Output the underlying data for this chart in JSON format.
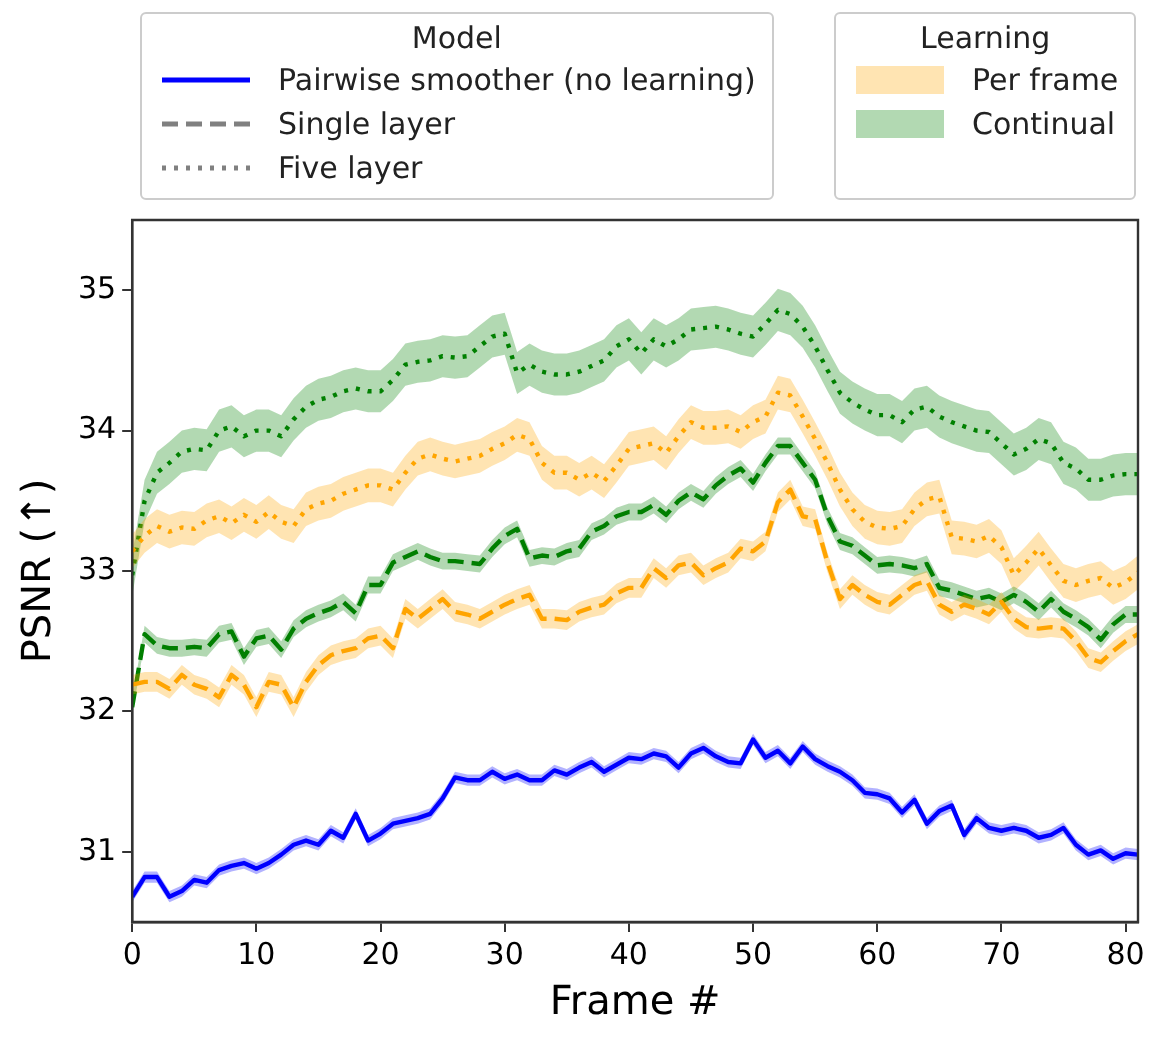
{
  "chart_data": {
    "type": "line",
    "xlabel": "Frame #",
    "ylabel": "PSNR (↑)",
    "legend_title": "Model",
    "legend": "top",
    "annotations": [
      "Single layer",
      "Five layer",
      "Learning",
      "Per frame",
      "Continual"
    ],
    "x": [
      0,
      1,
      2,
      3,
      4,
      5,
      6,
      7,
      8,
      9,
      10,
      11,
      12,
      13,
      14,
      15,
      16,
      17,
      18,
      19,
      20,
      21,
      22,
      23,
      24,
      25,
      26,
      27,
      28,
      29,
      30,
      31,
      32,
      33,
      34,
      35,
      36,
      37,
      38,
      39,
      40,
      41,
      42,
      43,
      44,
      45,
      46,
      47,
      48,
      49,
      50,
      51,
      52,
      53,
      54,
      55,
      56,
      57,
      58,
      59,
      60,
      61,
      62,
      63,
      64,
      65,
      66,
      67,
      68,
      69,
      70,
      71,
      72,
      73,
      74,
      75,
      76,
      77,
      78,
      79,
      80,
      81
    ],
    "xlim": [
      0,
      81
    ],
    "xticks": [
      0,
      10,
      20,
      30,
      40,
      50,
      60,
      70,
      80
    ],
    "ylim": [
      30.5,
      35.5
    ],
    "yticks": [
      31,
      32,
      33,
      34,
      35
    ],
    "grid": false,
    "marker": "none",
    "series": [
      {
        "name": "Pairwise smoother (no learning)",
        "color": "#0000ff",
        "line_style": "solid",
        "values": [
          30.68,
          30.82,
          30.82,
          30.68,
          30.72,
          30.8,
          30.78,
          30.87,
          30.9,
          30.92,
          30.88,
          30.92,
          30.98,
          31.05,
          31.08,
          31.05,
          31.15,
          31.1,
          31.27,
          31.08,
          31.13,
          31.2,
          31.22,
          31.24,
          31.27,
          31.38,
          31.53,
          31.51,
          31.51,
          31.57,
          31.52,
          31.55,
          31.51,
          31.51,
          31.58,
          31.55,
          31.6,
          31.64,
          31.57,
          31.62,
          31.67,
          31.66,
          31.7,
          31.68,
          31.6,
          31.7,
          31.74,
          31.68,
          31.64,
          31.63,
          31.8,
          31.67,
          31.72,
          31.63,
          31.75,
          31.66,
          31.61,
          31.57,
          31.51,
          31.42,
          31.41,
          31.38,
          31.28,
          31.37,
          31.2,
          31.29,
          31.33,
          31.12,
          31.24,
          31.17,
          31.15,
          31.17,
          31.15,
          31.1,
          31.12,
          31.17,
          31.05,
          30.98,
          31.01,
          30.95,
          30.99,
          30.98
        ],
        "lower": [
          30.64,
          30.78,
          30.78,
          30.64,
          30.68,
          30.76,
          30.74,
          30.83,
          30.86,
          30.88,
          30.84,
          30.88,
          30.94,
          31.01,
          31.04,
          31.01,
          31.11,
          31.06,
          31.23,
          31.04,
          31.09,
          31.16,
          31.18,
          31.2,
          31.23,
          31.34,
          31.49,
          31.47,
          31.47,
          31.53,
          31.48,
          31.51,
          31.47,
          31.47,
          31.54,
          31.51,
          31.56,
          31.6,
          31.53,
          31.58,
          31.63,
          31.62,
          31.66,
          31.64,
          31.56,
          31.66,
          31.7,
          31.64,
          31.6,
          31.59,
          31.76,
          31.63,
          31.68,
          31.59,
          31.71,
          31.62,
          31.57,
          31.53,
          31.47,
          31.38,
          31.37,
          31.34,
          31.24,
          31.33,
          31.16,
          31.25,
          31.29,
          31.08,
          31.2,
          31.13,
          31.11,
          31.13,
          31.11,
          31.06,
          31.08,
          31.13,
          31.01,
          30.94,
          30.97,
          30.91,
          30.95,
          30.94
        ],
        "upper": [
          30.72,
          30.86,
          30.86,
          30.72,
          30.76,
          30.84,
          30.82,
          30.91,
          30.94,
          30.96,
          30.92,
          30.96,
          31.02,
          31.09,
          31.12,
          31.09,
          31.19,
          31.14,
          31.31,
          31.12,
          31.17,
          31.24,
          31.26,
          31.28,
          31.31,
          31.42,
          31.57,
          31.55,
          31.55,
          31.61,
          31.56,
          31.59,
          31.55,
          31.55,
          31.62,
          31.59,
          31.64,
          31.68,
          31.61,
          31.66,
          31.71,
          31.7,
          31.74,
          31.72,
          31.64,
          31.74,
          31.78,
          31.72,
          31.68,
          31.67,
          31.84,
          31.71,
          31.76,
          31.67,
          31.79,
          31.7,
          31.65,
          31.61,
          31.55,
          31.46,
          31.45,
          31.42,
          31.32,
          31.41,
          31.24,
          31.33,
          31.37,
          31.16,
          31.28,
          31.21,
          31.19,
          31.21,
          31.19,
          31.14,
          31.16,
          31.21,
          31.09,
          31.02,
          31.05,
          30.99,
          31.03,
          31.02
        ]
      },
      {
        "color": "#008000",
        "line_style": "dotted",
        "values": [
          32.97,
          33.5,
          33.7,
          33.77,
          33.85,
          33.87,
          33.86,
          34.0,
          34.03,
          33.96,
          34.0,
          34.0,
          33.96,
          34.08,
          34.17,
          34.22,
          34.24,
          34.28,
          34.3,
          34.28,
          34.28,
          34.36,
          34.47,
          34.49,
          34.5,
          34.53,
          34.52,
          34.53,
          34.6,
          34.67,
          34.69,
          34.41,
          34.47,
          34.42,
          34.4,
          34.4,
          34.42,
          34.46,
          34.5,
          34.6,
          34.65,
          34.55,
          34.65,
          34.6,
          34.65,
          34.72,
          34.73,
          34.74,
          34.72,
          34.69,
          34.67,
          34.76,
          34.86,
          34.83,
          34.74,
          34.6,
          34.43,
          34.27,
          34.2,
          34.15,
          34.11,
          34.11,
          34.06,
          34.15,
          34.17,
          34.1,
          34.06,
          34.03,
          34.0,
          33.99,
          33.91,
          33.83,
          33.87,
          33.94,
          33.91,
          33.77,
          33.73,
          33.65,
          33.65,
          33.68,
          33.69,
          33.69
        ],
        "lower": [
          32.82,
          33.35,
          33.55,
          33.62,
          33.7,
          33.72,
          33.71,
          33.85,
          33.88,
          33.81,
          33.85,
          33.85,
          33.81,
          33.93,
          34.02,
          34.07,
          34.09,
          34.13,
          34.15,
          34.13,
          34.13,
          34.21,
          34.32,
          34.34,
          34.35,
          34.38,
          34.37,
          34.38,
          34.45,
          34.52,
          34.54,
          34.26,
          34.32,
          34.27,
          34.25,
          34.25,
          34.27,
          34.31,
          34.35,
          34.45,
          34.5,
          34.4,
          34.5,
          34.45,
          34.5,
          34.57,
          34.58,
          34.59,
          34.57,
          34.54,
          34.52,
          34.61,
          34.71,
          34.68,
          34.59,
          34.45,
          34.28,
          34.12,
          34.05,
          34.0,
          33.96,
          33.96,
          33.91,
          34.0,
          34.02,
          33.95,
          33.91,
          33.88,
          33.85,
          33.84,
          33.76,
          33.68,
          33.72,
          33.79,
          33.76,
          33.62,
          33.58,
          33.5,
          33.5,
          33.53,
          33.54,
          33.54
        ],
        "upper": [
          33.12,
          33.65,
          33.85,
          33.92,
          34.0,
          34.02,
          34.01,
          34.15,
          34.18,
          34.11,
          34.15,
          34.15,
          34.11,
          34.23,
          34.32,
          34.37,
          34.39,
          34.43,
          34.45,
          34.43,
          34.43,
          34.51,
          34.62,
          34.64,
          34.65,
          34.68,
          34.67,
          34.68,
          34.75,
          34.82,
          34.84,
          34.56,
          34.62,
          34.57,
          34.55,
          34.55,
          34.57,
          34.61,
          34.65,
          34.75,
          34.8,
          34.7,
          34.8,
          34.75,
          34.8,
          34.87,
          34.88,
          34.89,
          34.87,
          34.84,
          34.82,
          34.91,
          35.01,
          34.98,
          34.89,
          34.75,
          34.58,
          34.42,
          34.35,
          34.3,
          34.26,
          34.26,
          34.21,
          34.3,
          34.32,
          34.25,
          34.21,
          34.18,
          34.15,
          34.14,
          34.06,
          33.98,
          34.02,
          34.09,
          34.06,
          33.92,
          33.88,
          33.8,
          33.8,
          33.83,
          33.84,
          33.84
        ]
      },
      {
        "color": "#ffa500",
        "line_style": "dotted",
        "values": [
          33.14,
          33.25,
          33.32,
          33.28,
          33.31,
          33.3,
          33.36,
          33.39,
          33.34,
          33.4,
          33.35,
          33.42,
          33.35,
          33.32,
          33.44,
          33.48,
          33.5,
          33.55,
          33.58,
          33.61,
          33.61,
          33.58,
          33.7,
          33.8,
          33.83,
          33.8,
          33.78,
          33.8,
          33.82,
          33.87,
          33.91,
          33.97,
          33.94,
          33.77,
          33.7,
          33.7,
          33.65,
          33.7,
          33.64,
          33.75,
          33.87,
          33.89,
          33.91,
          33.84,
          33.96,
          34.06,
          34.02,
          34.02,
          34.03,
          33.99,
          34.06,
          34.1,
          34.27,
          34.25,
          34.1,
          33.94,
          33.77,
          33.58,
          33.44,
          33.35,
          33.31,
          33.3,
          33.32,
          33.44,
          33.51,
          33.53,
          33.24,
          33.23,
          33.21,
          33.25,
          33.17,
          32.97,
          33.06,
          33.16,
          33.04,
          32.93,
          32.9,
          32.93,
          32.95,
          32.88,
          32.92,
          32.99
        ],
        "lower": [
          33.02,
          33.13,
          33.2,
          33.16,
          33.19,
          33.18,
          33.24,
          33.27,
          33.22,
          33.28,
          33.23,
          33.3,
          33.23,
          33.2,
          33.32,
          33.36,
          33.38,
          33.43,
          33.46,
          33.49,
          33.49,
          33.46,
          33.58,
          33.68,
          33.71,
          33.68,
          33.66,
          33.68,
          33.7,
          33.75,
          33.79,
          33.85,
          33.82,
          33.65,
          33.58,
          33.58,
          33.53,
          33.58,
          33.52,
          33.63,
          33.75,
          33.77,
          33.79,
          33.72,
          33.84,
          33.94,
          33.9,
          33.9,
          33.91,
          33.87,
          33.94,
          33.98,
          34.15,
          34.13,
          33.98,
          33.82,
          33.65,
          33.46,
          33.32,
          33.23,
          33.19,
          33.18,
          33.2,
          33.32,
          33.39,
          33.41,
          33.12,
          33.11,
          33.09,
          33.13,
          33.05,
          32.85,
          32.94,
          33.04,
          32.92,
          32.81,
          32.78,
          32.81,
          32.83,
          32.76,
          32.8,
          32.87
        ],
        "upper": [
          33.26,
          33.37,
          33.44,
          33.4,
          33.43,
          33.42,
          33.48,
          33.51,
          33.46,
          33.52,
          33.47,
          33.54,
          33.47,
          33.44,
          33.56,
          33.6,
          33.62,
          33.67,
          33.7,
          33.73,
          33.73,
          33.7,
          33.82,
          33.92,
          33.95,
          33.92,
          33.9,
          33.92,
          33.94,
          33.99,
          34.03,
          34.09,
          34.06,
          33.89,
          33.82,
          33.82,
          33.77,
          33.82,
          33.76,
          33.87,
          33.99,
          34.01,
          34.03,
          33.96,
          34.08,
          34.18,
          34.14,
          34.14,
          34.15,
          34.11,
          34.18,
          34.22,
          34.39,
          34.37,
          34.22,
          34.06,
          33.89,
          33.7,
          33.56,
          33.47,
          33.43,
          33.42,
          33.44,
          33.56,
          33.63,
          33.65,
          33.36,
          33.35,
          33.33,
          33.37,
          33.29,
          33.09,
          33.18,
          33.28,
          33.16,
          33.05,
          33.02,
          33.05,
          33.07,
          33.0,
          33.04,
          33.11
        ]
      },
      {
        "color": "#007f00",
        "line_style": "dashed",
        "values": [
          32.03,
          32.55,
          32.47,
          32.45,
          32.45,
          32.46,
          32.45,
          32.55,
          32.57,
          32.39,
          32.52,
          32.54,
          32.44,
          32.59,
          32.66,
          32.7,
          32.73,
          32.78,
          32.7,
          32.9,
          32.9,
          33.06,
          33.1,
          33.14,
          33.1,
          33.07,
          33.07,
          33.06,
          33.05,
          33.16,
          33.25,
          33.3,
          33.09,
          33.11,
          33.1,
          33.14,
          33.16,
          33.28,
          33.32,
          33.39,
          33.42,
          33.42,
          33.47,
          33.4,
          33.5,
          33.56,
          33.51,
          33.61,
          33.68,
          33.73,
          33.63,
          33.77,
          33.89,
          33.89,
          33.77,
          33.65,
          33.39,
          33.21,
          33.18,
          33.11,
          33.04,
          33.05,
          33.04,
          33.02,
          33.05,
          32.88,
          32.86,
          32.83,
          32.8,
          32.82,
          32.78,
          32.83,
          32.78,
          32.71,
          32.8,
          32.71,
          32.66,
          32.6,
          32.51,
          32.62,
          32.69,
          32.69
        ],
        "lower": [
          31.97,
          32.49,
          32.41,
          32.39,
          32.39,
          32.4,
          32.39,
          32.49,
          32.51,
          32.33,
          32.46,
          32.48,
          32.38,
          32.53,
          32.6,
          32.64,
          32.67,
          32.72,
          32.64,
          32.84,
          32.84,
          33.0,
          33.04,
          33.08,
          33.04,
          33.01,
          33.01,
          33.0,
          32.99,
          33.1,
          33.19,
          33.24,
          33.03,
          33.05,
          33.04,
          33.08,
          33.1,
          33.22,
          33.26,
          33.33,
          33.36,
          33.36,
          33.41,
          33.34,
          33.44,
          33.5,
          33.45,
          33.55,
          33.62,
          33.67,
          33.57,
          33.71,
          33.83,
          33.83,
          33.71,
          33.59,
          33.33,
          33.15,
          33.12,
          33.05,
          32.98,
          32.99,
          32.98,
          32.96,
          32.99,
          32.82,
          32.8,
          32.77,
          32.74,
          32.76,
          32.72,
          32.77,
          32.72,
          32.65,
          32.74,
          32.65,
          32.6,
          32.54,
          32.45,
          32.56,
          32.63,
          32.63
        ],
        "upper": [
          32.09,
          32.61,
          32.53,
          32.51,
          32.51,
          32.52,
          32.51,
          32.61,
          32.63,
          32.45,
          32.58,
          32.6,
          32.5,
          32.65,
          32.72,
          32.76,
          32.79,
          32.84,
          32.76,
          32.96,
          32.96,
          33.12,
          33.16,
          33.2,
          33.16,
          33.13,
          33.13,
          33.12,
          33.11,
          33.22,
          33.31,
          33.36,
          33.15,
          33.17,
          33.16,
          33.2,
          33.22,
          33.34,
          33.38,
          33.45,
          33.48,
          33.48,
          33.53,
          33.46,
          33.56,
          33.62,
          33.57,
          33.67,
          33.74,
          33.79,
          33.69,
          33.83,
          33.95,
          33.95,
          33.83,
          33.71,
          33.45,
          33.27,
          33.24,
          33.17,
          33.1,
          33.11,
          33.1,
          33.08,
          33.11,
          32.94,
          32.92,
          32.89,
          32.86,
          32.88,
          32.84,
          32.89,
          32.84,
          32.77,
          32.86,
          32.77,
          32.72,
          32.66,
          32.57,
          32.68,
          32.75,
          32.75
        ]
      },
      {
        "color": "#ffa400",
        "line_style": "dashed",
        "values": [
          32.19,
          32.21,
          32.21,
          32.16,
          32.26,
          32.19,
          32.16,
          32.1,
          32.26,
          32.19,
          32.03,
          32.21,
          32.19,
          32.03,
          32.21,
          32.33,
          32.4,
          32.43,
          32.45,
          32.52,
          32.54,
          32.45,
          32.73,
          32.66,
          32.73,
          32.8,
          32.71,
          32.69,
          32.66,
          32.71,
          32.76,
          32.8,
          32.83,
          32.66,
          32.66,
          32.65,
          32.71,
          32.74,
          32.76,
          32.84,
          32.88,
          32.88,
          33.02,
          32.95,
          33.04,
          33.06,
          32.97,
          33.02,
          33.06,
          33.16,
          33.14,
          33.21,
          33.49,
          33.58,
          33.39,
          33.37,
          33.06,
          32.8,
          32.9,
          32.83,
          32.78,
          32.76,
          32.83,
          32.9,
          32.93,
          32.76,
          32.71,
          32.76,
          32.73,
          32.69,
          32.78,
          32.66,
          32.6,
          32.59,
          32.6,
          32.59,
          32.5,
          32.38,
          32.35,
          32.43,
          32.5,
          32.55
        ],
        "lower": [
          32.12,
          32.14,
          32.14,
          32.09,
          32.19,
          32.12,
          32.09,
          32.03,
          32.19,
          32.12,
          31.96,
          32.14,
          32.12,
          31.96,
          32.14,
          32.26,
          32.33,
          32.36,
          32.38,
          32.45,
          32.47,
          32.38,
          32.66,
          32.59,
          32.66,
          32.73,
          32.64,
          32.62,
          32.59,
          32.64,
          32.69,
          32.73,
          32.76,
          32.59,
          32.59,
          32.58,
          32.64,
          32.67,
          32.69,
          32.77,
          32.81,
          32.81,
          32.95,
          32.88,
          32.97,
          32.99,
          32.9,
          32.95,
          32.99,
          33.09,
          33.07,
          33.14,
          33.42,
          33.51,
          33.32,
          33.3,
          32.99,
          32.73,
          32.83,
          32.76,
          32.71,
          32.69,
          32.76,
          32.83,
          32.86,
          32.69,
          32.64,
          32.69,
          32.66,
          32.62,
          32.71,
          32.59,
          32.53,
          32.52,
          32.53,
          32.52,
          32.43,
          32.31,
          32.28,
          32.36,
          32.43,
          32.48
        ],
        "upper": [
          32.26,
          32.28,
          32.28,
          32.23,
          32.33,
          32.26,
          32.23,
          32.17,
          32.33,
          32.26,
          32.1,
          32.28,
          32.26,
          32.1,
          32.28,
          32.4,
          32.47,
          32.5,
          32.52,
          32.59,
          32.61,
          32.52,
          32.8,
          32.73,
          32.8,
          32.87,
          32.78,
          32.76,
          32.73,
          32.78,
          32.83,
          32.87,
          32.9,
          32.73,
          32.73,
          32.72,
          32.78,
          32.81,
          32.83,
          32.91,
          32.95,
          32.95,
          33.09,
          33.02,
          33.11,
          33.13,
          33.04,
          33.09,
          33.13,
          33.23,
          33.21,
          33.28,
          33.56,
          33.65,
          33.46,
          33.44,
          33.13,
          32.87,
          32.97,
          32.9,
          32.85,
          32.83,
          32.9,
          32.97,
          33.0,
          32.83,
          32.78,
          32.83,
          32.8,
          32.76,
          32.85,
          32.73,
          32.67,
          32.66,
          32.67,
          32.66,
          32.57,
          32.45,
          32.42,
          32.5,
          32.57,
          32.62
        ]
      }
    ]
  }
}
